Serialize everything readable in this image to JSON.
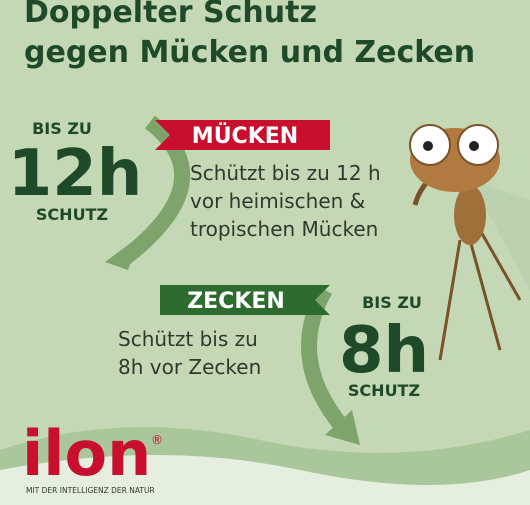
{
  "title": [
    "Doppelter Schutz",
    "gegen Mücken und Zecken"
  ],
  "mosquito_section": {
    "badge": {
      "top": "BIS ZU",
      "duration": "12h",
      "bottom": "SCHUTZ"
    },
    "label": "MÜCKEN",
    "description": [
      "Schützt bis zu 12 h",
      "vor heimischen &",
      "tropischen Mücken"
    ]
  },
  "tick_section": {
    "label": "ZECKEN",
    "description": [
      "Schützt bis zu",
      "8h vor Zecken"
    ],
    "badge": {
      "top": "BIS ZU",
      "duration": "8h",
      "bottom": "SCHUTZ"
    }
  },
  "logo": {
    "brand": "ilon",
    "registered": "®",
    "tagline": "MIT DER INTELLIGENZ DER NATUR"
  }
}
